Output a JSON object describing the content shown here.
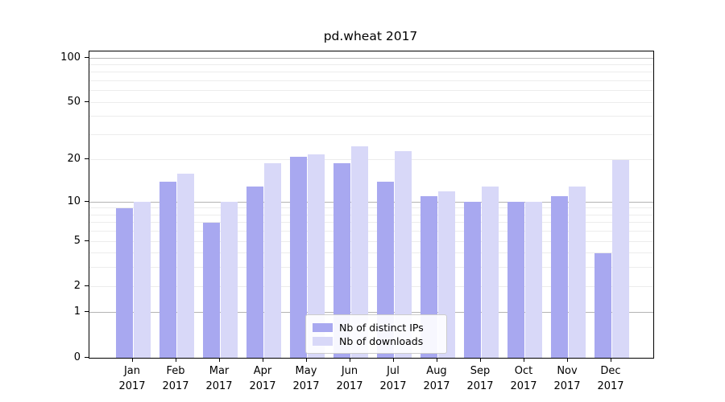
{
  "figure": {
    "background": "#ffffff"
  },
  "chart_data": {
    "type": "bar",
    "title": "pd.wheat 2017",
    "categories": [
      "Jan",
      "Feb",
      "Mar",
      "Apr",
      "May",
      "Jun",
      "Jul",
      "Aug",
      "Sep",
      "Oct",
      "Nov",
      "Dec"
    ],
    "category_year": "2017",
    "series": [
      {
        "name": "Nb of distinct IPs",
        "color": "#a8a8f0",
        "values": [
          9,
          14,
          7,
          13,
          21,
          19,
          14,
          11,
          10,
          10,
          11,
          4
        ]
      },
      {
        "name": "Nb of downloads",
        "color": "#d8d8f8",
        "values": [
          10,
          16,
          10,
          19,
          22,
          25,
          23,
          12,
          13,
          10,
          13,
          20
        ]
      }
    ],
    "yscale": "log1p",
    "ylim": [
      0,
      110
    ],
    "yticks": [
      0,
      1,
      2,
      5,
      10,
      20,
      50,
      100
    ],
    "major_gridlines": [
      1,
      10,
      100
    ],
    "minor_gridlines": [
      2,
      3,
      4,
      5,
      6,
      7,
      8,
      9,
      20,
      30,
      40,
      50,
      60,
      70,
      80,
      90
    ],
    "grid": true,
    "legend_position": "lower center"
  },
  "legend": {
    "entries": [
      "Nb of distinct IPs",
      "Nb of downloads"
    ]
  }
}
